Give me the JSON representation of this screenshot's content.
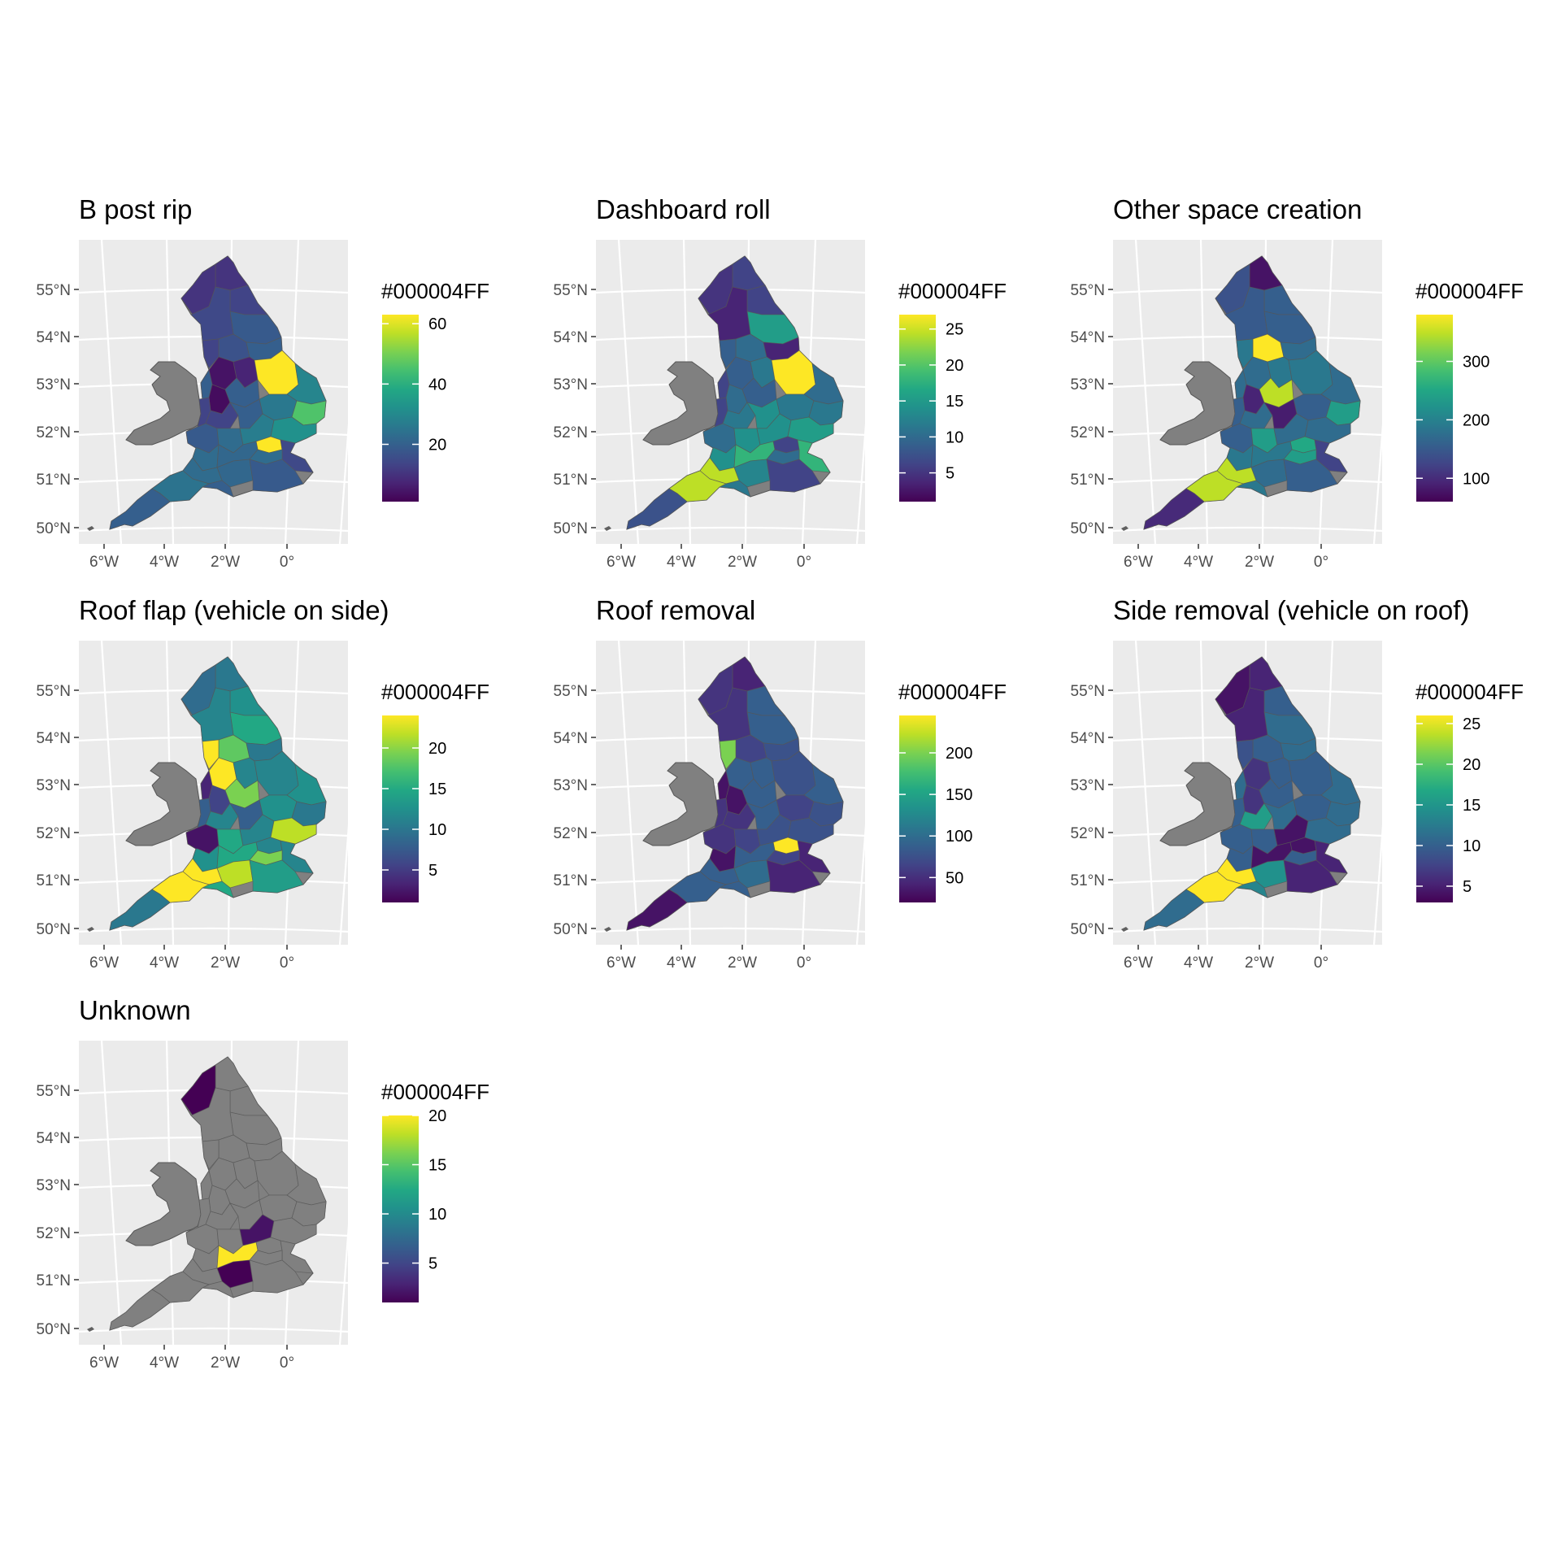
{
  "figure": {
    "axis_labels": {
      "lat": [
        "50°N",
        "51°N",
        "52°N",
        "53°N",
        "54°N",
        "55°N"
      ],
      "lon": [
        "6°W",
        "4°W",
        "2°W",
        "0°"
      ]
    },
    "na_color": "#808080",
    "panel_background": "#EBEBEB",
    "colors": {
      "viridis_low": "#440154",
      "viridis_mid": "#21918C",
      "viridis_high": "#FDE725",
      "border": "#555555"
    },
    "panels": [
      {
        "title": "B post rip",
        "legend_title": "#000004FF",
        "legend": {
          "min": 1,
          "max": 63,
          "ticks": [
            "20",
            "40",
            "60"
          ],
          "tick_values": [
            20,
            40,
            60
          ]
        },
        "scheme": "bpost"
      },
      {
        "title": "Dashboard roll",
        "legend_title": "#000004FF",
        "legend": {
          "min": 1,
          "max": 27,
          "ticks": [
            "5",
            "10",
            "15",
            "20",
            "25"
          ],
          "tick_values": [
            5,
            10,
            15,
            20,
            25
          ]
        },
        "scheme": "dash"
      },
      {
        "title": "Other space creation",
        "legend_title": "#000004FF",
        "legend": {
          "min": 60,
          "max": 380,
          "ticks": [
            "100",
            "200",
            "300"
          ],
          "tick_values": [
            100,
            200,
            300
          ]
        },
        "scheme": "other"
      },
      {
        "title": "Roof flap (vehicle on side)",
        "legend_title": "#000004FF",
        "legend": {
          "min": 1,
          "max": 24,
          "ticks": [
            "5",
            "10",
            "15",
            "20"
          ],
          "tick_values": [
            5,
            10,
            15,
            20
          ]
        },
        "scheme": "flap"
      },
      {
        "title": "Roof removal",
        "legend_title": "#000004FF",
        "legend": {
          "min": 20,
          "max": 245,
          "ticks": [
            "50",
            "100",
            "150",
            "200"
          ],
          "tick_values": [
            50,
            100,
            150,
            200
          ]
        },
        "scheme": "roofrem"
      },
      {
        "title": "Side removal (vehicle on roof)",
        "legend_title": "#000004FF",
        "legend": {
          "min": 3,
          "max": 26,
          "ticks": [
            "5",
            "10",
            "15",
            "20",
            "25"
          ],
          "tick_values": [
            5,
            10,
            15,
            20,
            25
          ]
        },
        "scheme": "side"
      },
      {
        "title": "Unknown",
        "legend_title": "#000004FF",
        "legend": {
          "min": 1,
          "max": 20,
          "ticks": [
            "5",
            "10",
            "15",
            "20"
          ],
          "tick_values": [
            5,
            10,
            15,
            20
          ]
        },
        "scheme": "unknown"
      }
    ]
  }
}
